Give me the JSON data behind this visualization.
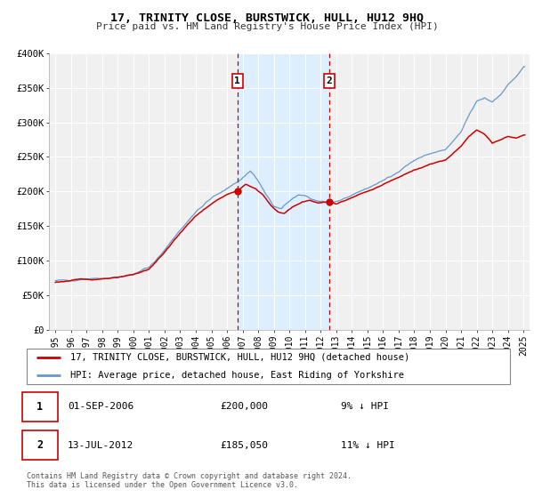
{
  "title": "17, TRINITY CLOSE, BURSTWICK, HULL, HU12 9HQ",
  "subtitle": "Price paid vs. HM Land Registry's House Price Index (HPI)",
  "sale1_x": 2006.667,
  "sale1_price": 200000,
  "sale1_label": "1",
  "sale1_date_str": "01-SEP-2006",
  "sale1_price_str": "£200,000",
  "sale1_pct_str": "9% ↓ HPI",
  "sale2_x": 2012.542,
  "sale2_price": 185050,
  "sale2_label": "2",
  "sale2_date_str": "13-JUL-2012",
  "sale2_price_str": "£185,050",
  "sale2_pct_str": "11% ↓ HPI",
  "legend_property": "17, TRINITY CLOSE, BURSTWICK, HULL, HU12 9HQ (detached house)",
  "legend_hpi": "HPI: Average price, detached house, East Riding of Yorkshire",
  "footer": "Contains HM Land Registry data © Crown copyright and database right 2024.\nThis data is licensed under the Open Government Licence v3.0.",
  "property_color": "#cc0000",
  "hpi_color": "#6699cc",
  "shade_color": "#ddeeff",
  "grid_color": "#ffffff",
  "bg_color": "#f0f0f0",
  "ylim": [
    0,
    400000
  ],
  "ytick_vals": [
    0,
    50000,
    100000,
    150000,
    200000,
    250000,
    300000,
    350000,
    400000
  ],
  "ytick_labels": [
    "£0",
    "£50K",
    "£100K",
    "£150K",
    "£200K",
    "£250K",
    "£300K",
    "£350K",
    "£400K"
  ],
  "hpi_anchors_x": [
    1995.0,
    1996.0,
    1997.0,
    1998.0,
    1999.0,
    2000.0,
    2001.0,
    2002.0,
    2003.0,
    2004.0,
    2005.0,
    2006.0,
    2006.75,
    2007.5,
    2008.0,
    2008.5,
    2009.0,
    2009.5,
    2010.0,
    2010.5,
    2011.0,
    2011.5,
    2012.0,
    2012.5,
    2013.0,
    2014.0,
    2015.0,
    2016.0,
    2017.0,
    2018.0,
    2019.0,
    2020.0,
    2021.0,
    2021.5,
    2022.0,
    2022.5,
    2023.0,
    2023.5,
    2024.0,
    2024.5,
    2025.0
  ],
  "hpi_anchors_y": [
    70000,
    72000,
    74000,
    75000,
    76000,
    80000,
    90000,
    115000,
    145000,
    170000,
    190000,
    205000,
    215000,
    230000,
    215000,
    195000,
    178000,
    175000,
    185000,
    195000,
    195000,
    188000,
    185000,
    182000,
    185000,
    195000,
    205000,
    215000,
    230000,
    245000,
    255000,
    260000,
    285000,
    310000,
    330000,
    335000,
    330000,
    340000,
    355000,
    365000,
    380000
  ],
  "prop_anchors_x": [
    1995.0,
    1996.0,
    1997.0,
    1998.0,
    1999.0,
    2000.0,
    2001.0,
    2002.0,
    2003.0,
    2004.0,
    2005.0,
    2006.0,
    2006.667,
    2007.2,
    2007.8,
    2008.3,
    2008.8,
    2009.3,
    2009.7,
    2010.2,
    2010.8,
    2011.3,
    2011.8,
    2012.542,
    2013.0,
    2014.0,
    2015.0,
    2016.0,
    2017.0,
    2018.0,
    2019.0,
    2020.0,
    2021.0,
    2021.5,
    2022.0,
    2022.5,
    2023.0,
    2023.5,
    2024.0,
    2024.5,
    2025.0
  ],
  "prop_anchors_y": [
    69000,
    71000,
    73000,
    74000,
    75000,
    79000,
    88000,
    112000,
    140000,
    165000,
    182000,
    196000,
    200000,
    210000,
    205000,
    195000,
    180000,
    170000,
    168000,
    178000,
    185000,
    188000,
    183000,
    185050,
    182000,
    192000,
    200000,
    210000,
    220000,
    232000,
    240000,
    245000,
    265000,
    280000,
    290000,
    283000,
    270000,
    275000,
    280000,
    278000,
    282000
  ]
}
